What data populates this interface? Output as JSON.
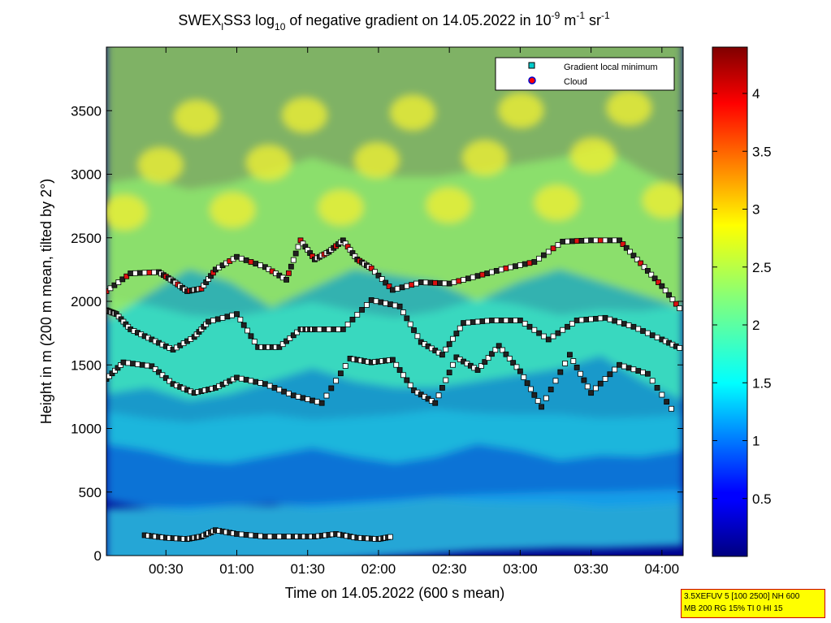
{
  "chart_data": {
    "type": "heatmap",
    "title": {
      "pre": "SWEX",
      "sub1": "l",
      "mid": "SS3 log",
      "sub2": "10",
      "post": " of negative gradient on 14.05.2022 in 10",
      "sup1": "-9",
      "unit1": " m",
      "sup2": "-1",
      "unit2": " sr",
      "sup3": "-1"
    },
    "xlabel": "Time on 14.05.2022 (600 s mean)",
    "ylabel": "Height in m (200 m mean, tilted by 2°)",
    "x_range_hours": [
      0.08,
      4.15
    ],
    "x_ticks": [
      {
        "h": 0.5,
        "label": "00:30"
      },
      {
        "h": 1.0,
        "label": "01:00"
      },
      {
        "h": 1.5,
        "label": "01:30"
      },
      {
        "h": 2.0,
        "label": "02:00"
      },
      {
        "h": 2.5,
        "label": "02:30"
      },
      {
        "h": 3.0,
        "label": "03:00"
      },
      {
        "h": 3.5,
        "label": "03:30"
      },
      {
        "h": 4.0,
        "label": "04:00"
      }
    ],
    "y_range": [
      0,
      4000
    ],
    "y_ticks": [
      0,
      500,
      1000,
      1500,
      2000,
      2500,
      3000,
      3500
    ],
    "colorbar": {
      "range": [
        0,
        4.4
      ],
      "ticks": [
        {
          "v": 0.5,
          "label": "0.5"
        },
        {
          "v": 1.0,
          "label": "1"
        },
        {
          "v": 1.5,
          "label": "1.5"
        },
        {
          "v": 2.0,
          "label": "2"
        },
        {
          "v": 2.5,
          "label": "2.5"
        },
        {
          "v": 3.0,
          "label": "3"
        },
        {
          "v": 3.5,
          "label": "3.5"
        },
        {
          "v": 4.0,
          "label": "4"
        }
      ],
      "colormap": "jet"
    },
    "legend": {
      "position": "top-right",
      "entries": [
        {
          "label": "Gradient local minimum",
          "marker": "square",
          "color": "#00cccc"
        },
        {
          "label": "Cloud",
          "marker": "circle",
          "color": "#ff0000",
          "edge": "#0000cc"
        }
      ]
    },
    "layers": [
      {
        "name": "gradient minimum trace 1",
        "x": [
          0.08,
          0.25,
          0.45,
          0.55,
          0.65,
          0.75,
          0.85,
          1.0,
          1.2,
          1.35,
          1.45,
          1.55,
          1.65,
          1.75,
          1.85,
          1.95,
          2.1,
          2.3,
          2.5,
          2.7,
          2.9,
          3.1,
          3.3,
          3.5,
          3.7,
          3.85,
          4.0,
          4.15
        ],
        "y": [
          2080,
          2220,
          2230,
          2160,
          2080,
          2100,
          2250,
          2350,
          2270,
          2170,
          2480,
          2330,
          2390,
          2480,
          2330,
          2260,
          2090,
          2150,
          2140,
          2200,
          2260,
          2310,
          2470,
          2480,
          2480,
          2300,
          2120,
          1910
        ]
      },
      {
        "name": "gradient minimum trace 2",
        "x": [
          0.08,
          0.15,
          0.25,
          0.4,
          0.55,
          0.7,
          0.8,
          1.0,
          1.15,
          1.3,
          1.45,
          1.55,
          1.75,
          1.95,
          2.15,
          2.3,
          2.45,
          2.6,
          2.8,
          3.0,
          3.2,
          3.4,
          3.6,
          3.8,
          4.0,
          4.15
        ],
        "y": [
          1930,
          1900,
          1780,
          1700,
          1620,
          1720,
          1840,
          1900,
          1640,
          1640,
          1780,
          1780,
          1780,
          2010,
          1960,
          1680,
          1580,
          1830,
          1850,
          1850,
          1700,
          1850,
          1870,
          1800,
          1700,
          1620
        ]
      },
      {
        "name": "gradient minimum trace 3",
        "x": [
          0.08,
          0.2,
          0.4,
          0.55,
          0.7,
          0.85,
          1.0,
          1.2,
          1.4,
          1.6,
          1.8,
          1.95,
          2.1,
          2.25,
          2.4,
          2.55,
          2.7,
          2.85,
          3.0,
          3.15,
          3.35,
          3.5,
          3.7,
          3.9,
          4.1
        ],
        "y": [
          1390,
          1520,
          1490,
          1350,
          1280,
          1320,
          1400,
          1350,
          1260,
          1200,
          1550,
          1520,
          1540,
          1300,
          1200,
          1560,
          1460,
          1650,
          1450,
          1170,
          1580,
          1280,
          1500,
          1430,
          1100
        ]
      },
      {
        "name": "low level minima",
        "x": [
          0.35,
          0.5,
          0.65,
          0.75,
          0.85,
          1.0,
          1.2,
          1.4,
          1.55,
          1.7,
          1.85,
          2.0,
          2.1
        ],
        "y": [
          160,
          140,
          130,
          150,
          200,
          170,
          150,
          150,
          150,
          170,
          140,
          130,
          150
        ]
      }
    ],
    "field_layers": [
      {
        "name": "band 0.15 km",
        "y": [
          150,
          150,
          160,
          170,
          170,
          180,
          200,
          220,
          240,
          260,
          270,
          280,
          280,
          290,
          300
        ]
      },
      {
        "name": "band 0.5-1 km",
        "y": [
          780,
          730,
          700,
          740,
          760,
          720,
          740,
          760,
          800,
          770,
          760,
          760,
          730,
          740,
          760
        ]
      },
      {
        "name": "band 1-1.7 km",
        "y": [
          1450,
          1400,
          1320,
          1300,
          1360,
          1420,
          1350,
          1300,
          1350,
          1450,
          1400,
          1320,
          1360,
          1350,
          1400
        ]
      },
      {
        "name": "band 1.7-2.4 km",
        "y": [
          2100,
          2150,
          2050,
          2100,
          2200,
          2300,
          2200,
          2150,
          2150,
          2200,
          2250,
          2300,
          2400,
          2200,
          2050
        ]
      },
      {
        "name": "band 2.5-3.9 km",
        "y": [
          3000,
          3200,
          3400,
          3300,
          3100,
          3250,
          3400,
          3350,
          3300,
          3150,
          3300,
          3400,
          3300,
          3200,
          3100
        ]
      }
    ]
  },
  "info_box": {
    "line1": "3.5XEFUV 5 [100 2500] NH 600",
    "line2": "MB 200 RG 15% TI 0 HI 15"
  }
}
